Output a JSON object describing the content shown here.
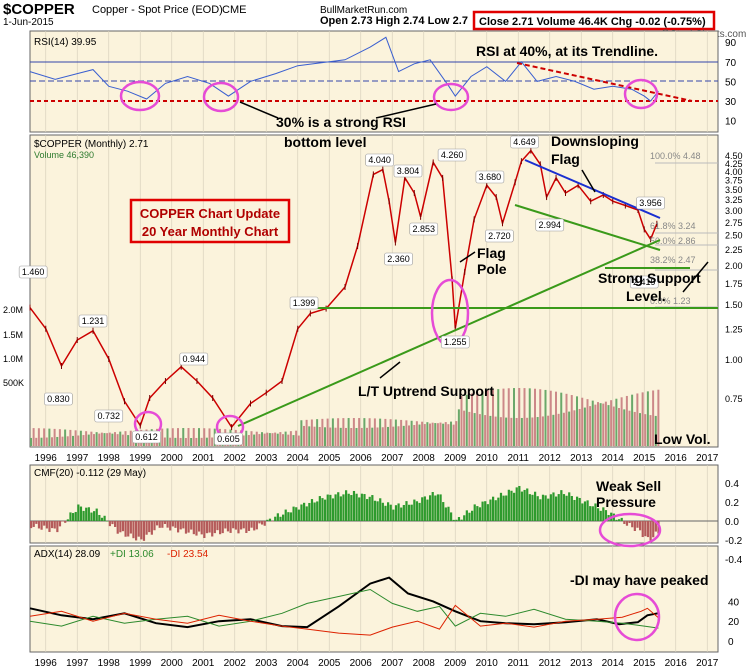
{
  "header": {
    "symbol": "$COPPER",
    "desc": "Copper - Spot Price (EOD)",
    "exchange": "CME",
    "date": "1-Jun-2015",
    "site": "BullMarketRun.com",
    "ohlc": "Open 2.73  High 2.74  Low 2.7",
    "summary": "Close 2.71  Volume 46.4K  Chg -0.02 (-0.75%)",
    "watermark": "@StockCharts.com"
  },
  "colors": {
    "panel_bg": "#fbf3dc",
    "rsi_line": "#3a5fd0",
    "price_bar": "#cc0000",
    "volume": "#cc8888",
    "cmf_pos": "#2d9a2d",
    "cmf_neg": "#b45a5a",
    "trend_green": "#3a9a1a",
    "flag_blue": "#1a2fd0",
    "circle": "#e64bd6"
  },
  "rsi_panel": {
    "label": "RSI(14) 39.95",
    "annotations": [
      {
        "text": "RSI at 40%, at its Trendline."
      },
      {
        "text": "30% is a strong RSI"
      },
      {
        "text": "bottom level"
      }
    ],
    "ticks": [
      "90",
      "70",
      "50",
      "30",
      "10"
    ]
  },
  "price_panel": {
    "label": "$COPPER (Monthly) 2.71",
    "volume_label": "Volume 46,390",
    "title_box_line1": "COPPER Chart Update",
    "title_box_line2": "20 Year Monthly Chart",
    "price_ticks": [
      "4.50",
      "4.25",
      "4.00",
      "3.75",
      "3.50",
      "3.25",
      "3.00",
      "2.75",
      "2.50",
      "2.25",
      "2.00",
      "1.75",
      "1.50",
      "1.25",
      "1.00",
      "0.75"
    ],
    "volume_ticks": [
      "2.0M",
      "1.5M",
      "1.0M",
      "500K"
    ],
    "fib": [
      "100.0% 4.48",
      "61.8% 3.24",
      "50.0% 2.86",
      "38.2% 2.47",
      "0.0% 1.23"
    ],
    "point_labels": [
      "1.460",
      "1.231",
      "0.830",
      "0.732",
      "0.612",
      "0.944",
      "0.605",
      "1.399",
      "4.040",
      "3.804",
      "2.360",
      "2.853",
      "4.260",
      "1.255",
      "3.680",
      "2.720",
      "4.649",
      "2.994",
      "3.956",
      "2.419"
    ],
    "annotations": [
      "Downsloping",
      "Flag",
      "Flag",
      "Pole",
      "Strong Support",
      "Level.",
      "L/T Uptrend Support",
      "Low Vol."
    ]
  },
  "years": [
    "1996",
    "1997",
    "1998",
    "1999",
    "2000",
    "2001",
    "2002",
    "2003",
    "2004",
    "2005",
    "2006",
    "2007",
    "2008",
    "2009",
    "2010",
    "2011",
    "2012",
    "2013",
    "2014",
    "2015",
    "2016",
    "2017"
  ],
  "cmf_panel": {
    "label": "CMF(20) -0.112 (29 May)",
    "ticks": [
      "0.4",
      "0.2",
      "0.0",
      "-0.2",
      "-0.4"
    ],
    "annotation1": "Weak Sell",
    "annotation2": "Pressure"
  },
  "adx_panel": {
    "label_adx": "ADX(14) 28.09",
    "label_pdi": "+DI 13.06",
    "label_mdi": "-DI 23.54",
    "ticks": [
      "40",
      "20",
      "0"
    ],
    "annotation": "-DI may have peaked"
  },
  "chart_data": {
    "type": "line",
    "title": "$COPPER (Monthly) 2.71",
    "x_range": [
      1996,
      2017
    ],
    "price_series": {
      "name": "$COPPER",
      "x": [
        1995.5,
        1996.0,
        1996.5,
        1997.0,
        1997.5,
        1998.0,
        1998.5,
        1999.0,
        1999.3,
        1999.8,
        2000.3,
        2000.8,
        2001.3,
        2001.9,
        2002.5,
        2003.0,
        2003.5,
        2004.0,
        2004.4,
        2004.9,
        2005.5,
        2005.9,
        2006.4,
        2006.7,
        2006.9,
        2007.1,
        2007.4,
        2007.7,
        2007.9,
        2008.3,
        2008.6,
        2008.9,
        2009.0,
        2009.3,
        2009.6,
        2010.0,
        2010.3,
        2010.5,
        2010.9,
        2011.1,
        2011.4,
        2011.7,
        2011.9,
        2012.2,
        2012.5,
        2012.9,
        2013.3,
        2013.7,
        2014.0,
        2014.4,
        2014.8,
        2015.0,
        2015.2,
        2015.4
      ],
      "y": [
        1.46,
        1.25,
        0.95,
        1.15,
        1.231,
        1.0,
        0.732,
        0.612,
        0.75,
        0.85,
        0.944,
        0.85,
        0.75,
        0.605,
        0.72,
        0.78,
        0.85,
        1.25,
        1.399,
        1.45,
        1.7,
        2.3,
        3.9,
        4.04,
        3.2,
        2.36,
        3.804,
        3.4,
        2.853,
        4.26,
        3.8,
        1.8,
        1.255,
        1.9,
        2.8,
        3.6,
        3.3,
        2.72,
        3.68,
        4.3,
        4.649,
        4.2,
        3.3,
        3.8,
        3.4,
        3.6,
        3.2,
        3.35,
        3.2,
        3.1,
        3.0,
        2.6,
        2.419,
        2.71
      ]
    },
    "rsi_series": {
      "name": "RSI(14)",
      "ylim": [
        0,
        100
      ],
      "x": [
        1995.5,
        1996.3,
        1997.0,
        1997.5,
        1998.0,
        1998.6,
        1999.2,
        1999.8,
        2000.5,
        2001.2,
        2001.8,
        2002.5,
        2003.3,
        2004.0,
        2004.5,
        2005.5,
        2006.3,
        2006.8,
        2007.2,
        2007.7,
        2008.2,
        2008.8,
        2009.0,
        2009.5,
        2010.0,
        2010.6,
        2011.1,
        2011.6,
        2012.2,
        2012.8,
        2013.4,
        2014.0,
        2014.6,
        2015.0,
        2015.2,
        2015.45
      ],
      "y": [
        60,
        52,
        58,
        62,
        45,
        40,
        32,
        48,
        55,
        48,
        35,
        50,
        58,
        66,
        68,
        72,
        85,
        95,
        60,
        68,
        72,
        45,
        35,
        55,
        65,
        50,
        70,
        50,
        55,
        50,
        42,
        45,
        42,
        35,
        30,
        39.95
      ]
    },
    "cmf_series": {
      "name": "CMF(20)",
      "ylim": [
        -0.5,
        0.5
      ],
      "x": [
        1995.5,
        1996.3,
        1997.0,
        1997.6,
        1998.3,
        1999.0,
        1999.6,
        2000.3,
        2001.0,
        2001.8,
        2002.5,
        2003.3,
        2004.0,
        2004.8,
        2005.6,
        2006.3,
        2007.0,
        2007.7,
        2008.4,
        2009.0,
        2009.6,
        2010.3,
        2011.0,
        2011.7,
        2012.4,
        2013.1,
        2013.8,
        2014.5,
        2014.8,
        2015.1,
        2015.45
      ],
      "y": [
        -0.05,
        -0.1,
        0.15,
        0.1,
        -0.12,
        -0.2,
        -0.05,
        -0.1,
        -0.15,
        -0.1,
        -0.1,
        0.05,
        0.15,
        0.25,
        0.3,
        0.25,
        0.15,
        0.2,
        0.3,
        0.0,
        0.15,
        0.25,
        0.35,
        0.25,
        0.3,
        0.2,
        0.1,
        -0.05,
        -0.1,
        -0.2,
        -0.112
      ]
    },
    "adx_series": [
      {
        "name": "ADX(14)",
        "x": [
          1995.5,
          1996.5,
          1997.5,
          1998.5,
          1999.5,
          2000.5,
          2001.5,
          2002.5,
          2003.5,
          2004.3,
          2005.3,
          2006.3,
          2006.9,
          2007.5,
          2008.3,
          2009.0,
          2009.8,
          2010.6,
          2011.5,
          2012.5,
          2013.5,
          2014.2,
          2014.8,
          2015.1,
          2015.45
        ],
        "y": [
          33,
          26,
          22,
          28,
          18,
          14,
          20,
          22,
          15,
          14,
          35,
          58,
          64,
          48,
          40,
          30,
          20,
          18,
          17,
          19,
          22,
          17,
          19,
          26,
          28.09
        ]
      },
      {
        "name": "+DI",
        "x": [
          1995.5,
          1996.5,
          1997.5,
          1998.5,
          1999.5,
          2000.5,
          2001.5,
          2002.5,
          2003.5,
          2004.3,
          2005.3,
          2006.3,
          2007.0,
          2007.8,
          2008.5,
          2009.0,
          2009.8,
          2010.6,
          2011.5,
          2012.5,
          2013.5,
          2014.3,
          2015.0,
          2015.45
        ],
        "y": [
          20,
          15,
          25,
          18,
          22,
          25,
          15,
          20,
          28,
          38,
          45,
          52,
          38,
          30,
          35,
          15,
          28,
          25,
          32,
          22,
          20,
          18,
          15,
          13.06
        ]
      },
      {
        "name": "-DI",
        "x": [
          1995.5,
          1996.5,
          1997.5,
          1998.5,
          1999.5,
          2000.5,
          2001.5,
          2002.5,
          2003.5,
          2004.3,
          2005.3,
          2006.3,
          2007.0,
          2007.8,
          2008.5,
          2009.0,
          2009.8,
          2010.6,
          2011.5,
          2012.5,
          2013.5,
          2014.3,
          2014.9,
          2015.1,
          2015.45
        ],
        "y": [
          25,
          30,
          20,
          28,
          22,
          18,
          26,
          20,
          15,
          12,
          8,
          6,
          14,
          20,
          12,
          36,
          15,
          18,
          14,
          20,
          22,
          24,
          30,
          33,
          23.54
        ]
      }
    ]
  }
}
